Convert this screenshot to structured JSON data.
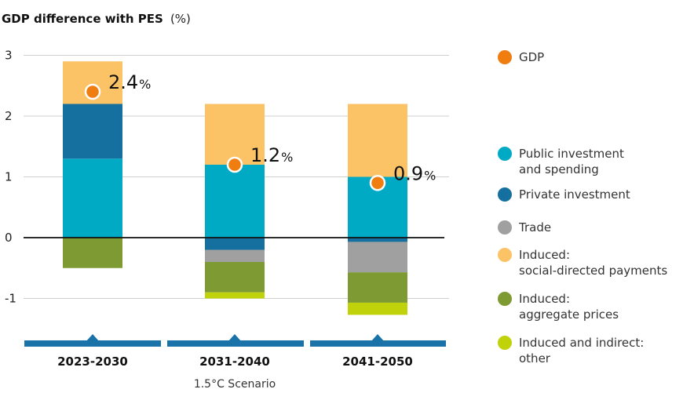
{
  "chart_data": {
    "type": "bar",
    "stacked": true,
    "title": "GDP difference with PES",
    "title_unit": "(%)",
    "categories": [
      "2023-2030",
      "2031-2040",
      "2041-2050"
    ],
    "scenario_label": "1.5°C Scenario",
    "ylim": [
      -1.5,
      3
    ],
    "yticks": [
      3,
      2,
      1,
      0,
      -1
    ],
    "grid": true,
    "legend_position": "right",
    "series": [
      {
        "name": "Public investment\nand spending",
        "color": "#00aac4",
        "values": [
          1.3,
          1.2,
          1.0
        ]
      },
      {
        "name": "Private investment",
        "color": "#1570a0",
        "values": [
          0.9,
          -0.2,
          -0.07
        ]
      },
      {
        "name": "Trade",
        "color": "#a0a0a0",
        "values": [
          0,
          -0.2,
          -0.5
        ]
      },
      {
        "name": "Induced:\nsocial-directed payments",
        "color": "#fcc366",
        "values": [
          0.7,
          1.0,
          1.2
        ]
      },
      {
        "name": "Induced:\naggregate prices",
        "color": "#7e9a32",
        "values": [
          -0.5,
          -0.5,
          -0.5
        ]
      },
      {
        "name": "Induced and indirect:\nother",
        "color": "#c0d20a",
        "values": [
          0,
          -0.1,
          -0.2
        ]
      }
    ],
    "gdp": {
      "name": "GDP",
      "color": "#ef7d10",
      "values": [
        2.4,
        1.2,
        0.9
      ],
      "labels": [
        "2.4",
        "1.2",
        "0.9"
      ],
      "unit": "%"
    }
  }
}
